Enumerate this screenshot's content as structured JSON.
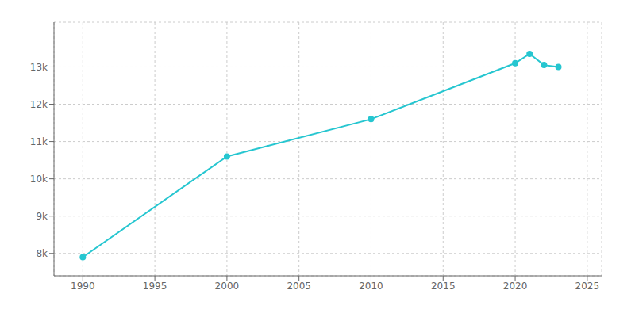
{
  "chart_data": {
    "type": "line",
    "x": [
      1990,
      2000,
      2010,
      2020,
      2021,
      2022,
      2023
    ],
    "values": [
      7900,
      10600,
      11600,
      13100,
      13350,
      13050,
      13000
    ],
    "color": "#26c6d0",
    "marker": "circle",
    "xlim": [
      1988,
      2026
    ],
    "ylim": [
      7400,
      14200
    ],
    "xticks": [
      1990,
      1995,
      2000,
      2005,
      2010,
      2015,
      2020,
      2025
    ],
    "yticks": [
      {
        "value": 8000,
        "label": "8k"
      },
      {
        "value": 9000,
        "label": "9k"
      },
      {
        "value": 10000,
        "label": "10k"
      },
      {
        "value": 11000,
        "label": "11k"
      },
      {
        "value": 12000,
        "label": "12k"
      },
      {
        "value": 13000,
        "label": "13k"
      }
    ],
    "grid": true
  }
}
